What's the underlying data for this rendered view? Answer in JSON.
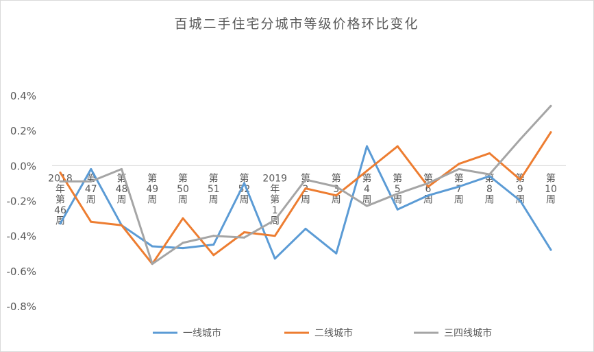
{
  "chart_data": {
    "type": "line",
    "title": "百城二手住宅分城市等级价格环比变化",
    "xlabel": "",
    "ylabel": "",
    "ylim": [
      -0.8,
      0.4
    ],
    "yticks": [
      "0.4%",
      "0.2%",
      "0.0%",
      "-0.2%",
      "-0.4%",
      "-0.6%",
      "-0.8%"
    ],
    "ytick_values": [
      0.4,
      0.2,
      0.0,
      -0.2,
      -0.4,
      -0.6,
      -0.8
    ],
    "categories": [
      "2018年第46周",
      "第47周",
      "第48周",
      "第49周",
      "第50周",
      "第51周",
      "第52周",
      "2019年第1周",
      "第2周",
      "第3周",
      "第4周",
      "第5周",
      "第6周",
      "第7周",
      "第8周",
      "第9周",
      "第10周"
    ],
    "series": [
      {
        "name": "一线城市",
        "color": "#5b9bd5",
        "values": [
          -0.33,
          -0.02,
          -0.34,
          -0.46,
          -0.47,
          -0.45,
          -0.1,
          -0.53,
          -0.36,
          -0.5,
          0.11,
          -0.25,
          -0.17,
          -0.12,
          -0.06,
          -0.2,
          -0.48
        ]
      },
      {
        "name": "二线城市",
        "color": "#ed7d31",
        "values": [
          -0.04,
          -0.32,
          -0.34,
          -0.56,
          -0.3,
          -0.51,
          -0.38,
          -0.4,
          -0.13,
          -0.17,
          -0.03,
          0.11,
          -0.12,
          0.01,
          0.07,
          -0.08,
          0.19
        ]
      },
      {
        "name": "三四线城市",
        "color": "#a5a5a5",
        "values": [
          -0.09,
          -0.09,
          -0.02,
          -0.56,
          -0.44,
          -0.4,
          -0.41,
          -0.31,
          -0.08,
          -0.12,
          -0.23,
          -0.16,
          -0.1,
          -0.02,
          -0.05,
          0.15,
          0.34
        ]
      }
    ],
    "grid": false,
    "legend": "bottom"
  }
}
